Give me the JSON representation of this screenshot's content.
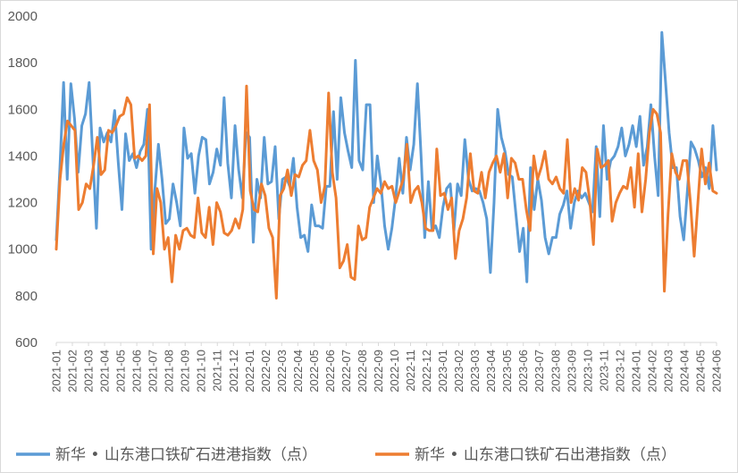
{
  "chart_data": {
    "type": "line",
    "title": "",
    "xlabel": "",
    "ylabel": "",
    "ylim": [
      600,
      2000
    ],
    "yticks": [
      600,
      800,
      1000,
      1200,
      1400,
      1600,
      1800,
      2000
    ],
    "x_tick_labels": [
      "2021-01",
      "2021-02",
      "2021-03",
      "2021-04",
      "2021-05",
      "2021-06",
      "2021-07",
      "2021-08",
      "2021-09",
      "2021-10",
      "2021-11",
      "2021-12",
      "2022-01",
      "2022-02",
      "2022-03",
      "2022-04",
      "2022-05",
      "2022-06",
      "2022-07",
      "2022-08",
      "2022-09",
      "2022-10",
      "2022-11",
      "2022-12",
      "2023-01",
      "2023-02",
      "2023-03",
      "2023-04",
      "2023-05",
      "2023-06",
      "2023-07",
      "2023-08",
      "2023-09",
      "2023-10",
      "2023-11",
      "2023-12",
      "2024-01",
      "2024-02",
      "2024-03",
      "2024-04",
      "2024-05",
      "2024-06"
    ],
    "grid": false,
    "legend_position": "bottom",
    "series": [
      {
        "name": "新华 • 山东港口铁矿石进港指数（点）",
        "color": "#5B9BD5",
        "values": [
          1040,
          1350,
          1715,
          1300,
          1710,
          1560,
          1330,
          1530,
          1580,
          1715,
          1400,
          1090,
          1520,
          1460,
          1500,
          1460,
          1595,
          1370,
          1170,
          1495,
          1380,
          1410,
          1350,
          1420,
          1450,
          1600,
          1000,
          1250,
          1450,
          1300,
          1110,
          1130,
          1280,
          1200,
          1100,
          1520,
          1390,
          1410,
          1240,
          1400,
          1480,
          1470,
          1280,
          1330,
          1430,
          1360,
          1650,
          1370,
          1220,
          1530,
          1340,
          1220,
          1500,
          1480,
          1030,
          1300,
          1220,
          1480,
          1280,
          1290,
          1440,
          1130,
          1300,
          1310,
          1270,
          1390,
          1180,
          1050,
          1060,
          990,
          1190,
          1100,
          1100,
          1090,
          1270,
          1270,
          1590,
          1300,
          1650,
          1500,
          1420,
          1350,
          1810,
          1380,
          1340,
          1620,
          1620,
          1200,
          1400,
          1280,
          1100,
          1000,
          1090,
          1220,
          1390,
          1240,
          1480,
          1340,
          1450,
          1710,
          1400,
          1050,
          1290,
          1080,
          1100,
          1050,
          1180,
          1260,
          1280,
          1080,
          1280,
          1230,
          1470,
          1300,
          1250,
          1260,
          1250,
          1200,
          1130,
          900,
          1200,
          1600,
          1480,
          1420,
          1320,
          1310,
          1150,
          990,
          1090,
          860,
          1350,
          1170,
          1300,
          1210,
          1050,
          980,
          1050,
          1050,
          1150,
          1190,
          1250,
          1090,
          1200,
          1250,
          1220,
          1240,
          1200,
          1160,
          1440,
          1140,
          1530,
          1300,
          1380,
          1400,
          1440,
          1520,
          1400,
          1450,
          1530,
          1440,
          1570,
          1360,
          1440,
          1620,
          1400,
          1230,
          1930,
          1720,
          1500,
          1350,
          1350,
          1140,
          1040,
          1250,
          1460,
          1430,
          1380,
          1310,
          1350,
          1260,
          1530,
          1340
        ]
      },
      {
        "name": "新华 • 山东港口铁矿石出港指数（点）",
        "color": "#ED7D31",
        "values": [
          1000,
          1300,
          1450,
          1550,
          1530,
          1510,
          1170,
          1200,
          1280,
          1260,
          1360,
          1480,
          1320,
          1340,
          1510,
          1500,
          1530,
          1570,
          1580,
          1650,
          1620,
          1390,
          1400,
          1380,
          1400,
          1620,
          980,
          1260,
          1200,
          1000,
          1050,
          860,
          1060,
          1000,
          1080,
          1090,
          1060,
          1050,
          1220,
          1070,
          1050,
          1180,
          1020,
          1200,
          1160,
          1070,
          1060,
          1080,
          1130,
          1090,
          1170,
          1700,
          1250,
          1170,
          1160,
          1280,
          1230,
          1090,
          1050,
          790,
          1230,
          1260,
          1340,
          1230,
          1320,
          1310,
          1360,
          1380,
          1510,
          1380,
          1340,
          1200,
          1270,
          1670,
          1330,
          1220,
          920,
          950,
          1020,
          880,
          870,
          1100,
          1040,
          1050,
          1180,
          1220,
          1260,
          1240,
          1290,
          1260,
          1270,
          1200,
          1250,
          1300,
          1450,
          1200,
          1250,
          1270,
          1200,
          1090,
          1080,
          1080,
          1430,
          1230,
          1240,
          1170,
          1220,
          960,
          1080,
          1130,
          1220,
          1410,
          1250,
          1240,
          1330,
          1220,
          1330,
          1370,
          1400,
          1330,
          1410,
          1220,
          1390,
          1370,
          1300,
          1300,
          1170,
          1080,
          1400,
          1300,
          1350,
          1420,
          1300,
          1280,
          1310,
          1260,
          1240,
          1470,
          1200,
          1260,
          1210,
          1350,
          1330,
          1210,
          1020,
          1430,
          1350,
          1360,
          1380,
          1120,
          1200,
          1240,
          1270,
          1260,
          1350,
          1180,
          1410,
          1160,
          1300,
          1500,
          1600,
          1580,
          1500,
          820,
          1150,
          1410,
          1330,
          1300,
          1380,
          1380,
          1200,
          970,
          1200,
          1430,
          1280,
          1370,
          1250,
          1240
        ]
      }
    ]
  }
}
